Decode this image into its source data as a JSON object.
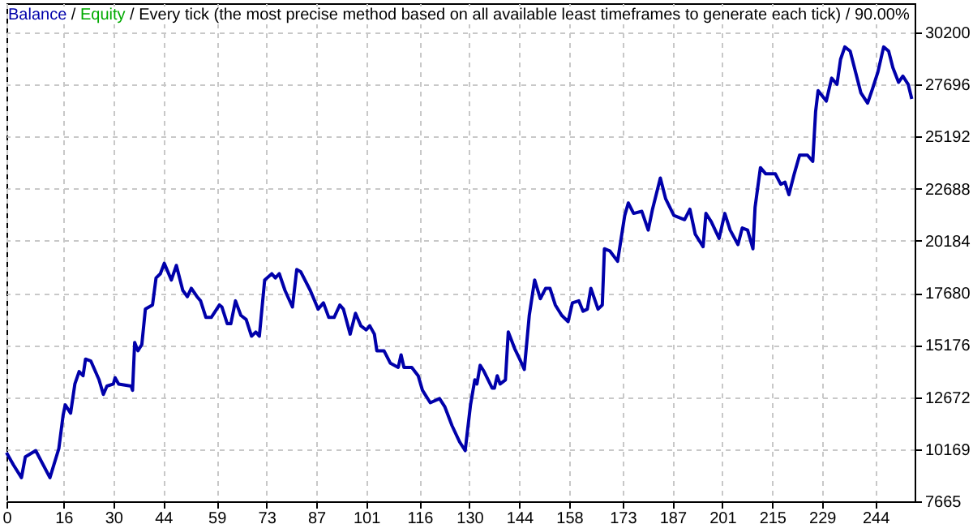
{
  "chart_data": {
    "type": "line",
    "title": "Every tick (the most precise method based on all available least timeframes to generate each tick) / 90.00%",
    "annotations": [
      "/",
      "/"
    ],
    "x": [
      0,
      2,
      4.2,
      5.3,
      8.2,
      12.2,
      14.7,
      15.9,
      16.5,
      18,
      19.2,
      20.4,
      21.5,
      22.2,
      23.7,
      26,
      27.2,
      28.2,
      30,
      30.5,
      31.5,
      35,
      35.4,
      36,
      36.9,
      38,
      39,
      41,
      42,
      43.2,
      44.3,
      46.3,
      47.7,
      49.5,
      50.8,
      51.9,
      53.5,
      54.5,
      56,
      57.5,
      59.8,
      60.5,
      62,
      63,
      64.3,
      65.8,
      67.3,
      68.8,
      70,
      71,
      72.5,
      74.5,
      75.5,
      76.6,
      78.2,
      80.3,
      81.5,
      82.6,
      85.3,
      87.5,
      89,
      90.5,
      92,
      93.6,
      94.6,
      96.5,
      98,
      99.5,
      101,
      102,
      103.3,
      104,
      106,
      107.8,
      110,
      110.8,
      111.6,
      113.8,
      115.6,
      116.8,
      119,
      121.6,
      123.1,
      125.1,
      127.3,
      128.8,
      130.3,
      131.5,
      132.1,
      133,
      134.1,
      136.4,
      137,
      137.8,
      138.6,
      140.1,
      140.9,
      142.7,
      144.1,
      145.4,
      146.8,
      148.3,
      149.9,
      151.4,
      152.6,
      154.1,
      155.9,
      157.7,
      158.9,
      160.7,
      161.9,
      163.1,
      164.1,
      166.1,
      167.3,
      167.9,
      169.4,
      171.6,
      173.6,
      174.6,
      176.1,
      178.4,
      180.2,
      181.4,
      183.6,
      185.1,
      187.4,
      190.4,
      191.9,
      193.4,
      195.6,
      196.4,
      197.9,
      200.1,
      201.7,
      203.2,
      205.4,
      206.6,
      208.1,
      209.6,
      210.2,
      211.7,
      213.2,
      215.9,
      217.4,
      218.6,
      219.7,
      221.2,
      222.7,
      224.9,
      226.4,
      227.2,
      227.9,
      230.2,
      231.7,
      233.2,
      234.2,
      235.4,
      236.9,
      238.7,
      239.9,
      241.8,
      243.2,
      244.7,
      246.3,
      247.7,
      248.9,
      250.5,
      251.7,
      253.2,
      254.2
    ],
    "series": [
      {
        "name": "Balance",
        "color": "#0000aa",
        "values": [
          10000,
          9400,
          8800,
          9800,
          10100,
          8800,
          10200,
          11800,
          12300,
          11900,
          13300,
          13900,
          13700,
          14500,
          14400,
          13500,
          12800,
          13200,
          13300,
          13600,
          13300,
          13200,
          13000,
          15300,
          14900,
          15200,
          16900,
          17100,
          18400,
          18600,
          19100,
          18300,
          19000,
          17800,
          17500,
          17900,
          17500,
          17300,
          16500,
          16500,
          17100,
          17000,
          16200,
          16200,
          17300,
          16600,
          16400,
          15600,
          15800,
          15600,
          18300,
          18600,
          18400,
          18600,
          17800,
          17000,
          18800,
          18700,
          17800,
          16900,
          17200,
          16500,
          16500,
          17100,
          16900,
          15700,
          16700,
          16100,
          15900,
          16100,
          15700,
          14900,
          14900,
          14300,
          14100,
          14700,
          14100,
          14100,
          13700,
          13000,
          12400,
          12600,
          12200,
          11300,
          10500,
          10100,
          12300,
          13500,
          13300,
          14200,
          13900,
          13100,
          13100,
          13700,
          13300,
          13500,
          15800,
          15000,
          14500,
          14000,
          16600,
          18300,
          17400,
          17900,
          17900,
          17100,
          16600,
          16300,
          17200,
          17300,
          16800,
          16900,
          17900,
          16900,
          17100,
          19800,
          19700,
          19200,
          21400,
          22000,
          21500,
          21600,
          20700,
          21700,
          23200,
          22200,
          21400,
          21200,
          21700,
          20500,
          19900,
          21500,
          21100,
          20300,
          21500,
          20700,
          20000,
          20800,
          20700,
          19800,
          21800,
          23700,
          23400,
          23400,
          22900,
          23000,
          22400,
          23400,
          24300,
          24300,
          24000,
          26400,
          27400,
          26900,
          28000,
          27700,
          28900,
          29500,
          29300,
          28100,
          27300,
          26800,
          27500,
          28300,
          29500,
          29300,
          28500,
          27800,
          28100,
          27700,
          27000
        ]
      },
      {
        "name": "Equity",
        "color": "#00aa00",
        "values": [
          null,
          null,
          null,
          null,
          null,
          null,
          null,
          null,
          null,
          null,
          null,
          null,
          null,
          null,
          null,
          null,
          null,
          null,
          null,
          null,
          null,
          null,
          null,
          null,
          null,
          null,
          null,
          null,
          null,
          null,
          null,
          null,
          null,
          null,
          null,
          null,
          null,
          null,
          null,
          null,
          null,
          null,
          null,
          null,
          null,
          null,
          null,
          null,
          null,
          null,
          null,
          null,
          null,
          null,
          null,
          null,
          null,
          null,
          null,
          null,
          null,
          null,
          null,
          null,
          null,
          null,
          null,
          null,
          null,
          null,
          null,
          null,
          null,
          null,
          null,
          null,
          null,
          null,
          null,
          null,
          null,
          null,
          null,
          null,
          null,
          null,
          null,
          null,
          null,
          null,
          null,
          null,
          null,
          null,
          null,
          null,
          null,
          null,
          null,
          null,
          null,
          null,
          null,
          null,
          null,
          null,
          null,
          null,
          null,
          null,
          null,
          null,
          null,
          null,
          null,
          null,
          null,
          null,
          null,
          null,
          null,
          null,
          null,
          null,
          null,
          null,
          null,
          null,
          null,
          null,
          null,
          null,
          null,
          null,
          null,
          null,
          null,
          null,
          null,
          null,
          null,
          null,
          null,
          null,
          null,
          null,
          null,
          null,
          null,
          null,
          null,
          null,
          null,
          null,
          null,
          null,
          null,
          null,
          null,
          null,
          null,
          null,
          null,
          null,
          null,
          null,
          null,
          null,
          null,
          null,
          null
        ]
      }
    ],
    "xlim": [
      0,
      255
    ],
    "xticks": [
      0,
      16,
      30,
      44,
      59,
      73,
      87,
      101,
      116,
      130,
      144,
      158,
      173,
      187,
      201,
      215,
      229,
      244
    ],
    "ylim": [
      7665,
      31600
    ],
    "yticks": [
      7665,
      10169,
      12672,
      15176,
      17680,
      20184,
      22688,
      25192,
      27696,
      30200
    ],
    "grid": true,
    "legend": "top left",
    "marker": "none",
    "line_style": "solid"
  }
}
